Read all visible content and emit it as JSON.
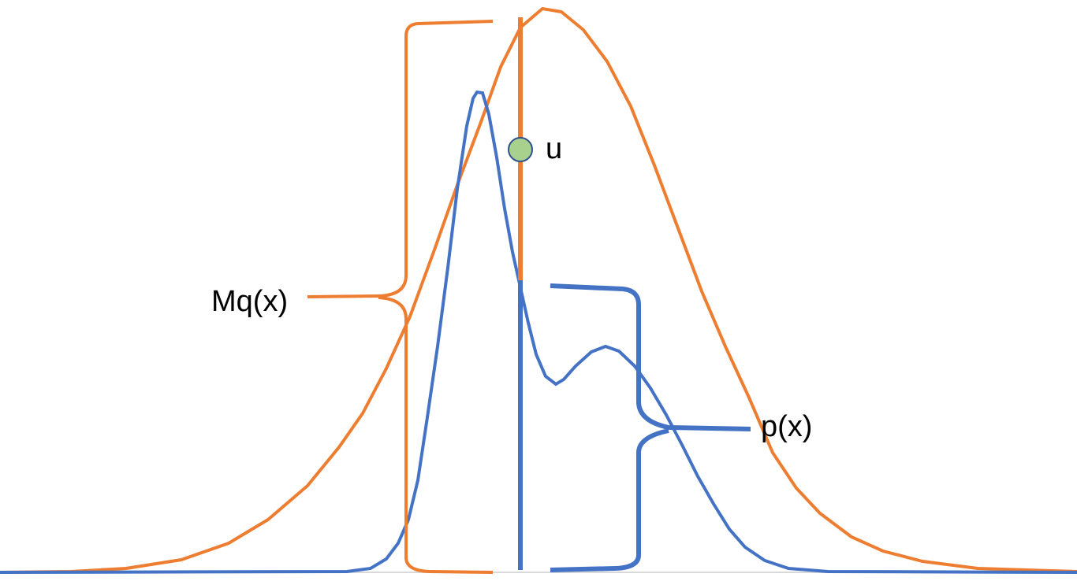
{
  "labels": {
    "envelope": "Mq(x)",
    "target": "p(x)",
    "sample": "u"
  },
  "colors": {
    "envelope": "#ED7D31",
    "target": "#4472C4",
    "sample_fill": "#A9D18E",
    "sample_stroke": "#2F528F",
    "baseline": "#D9D9D9",
    "text": "#000000"
  }
}
